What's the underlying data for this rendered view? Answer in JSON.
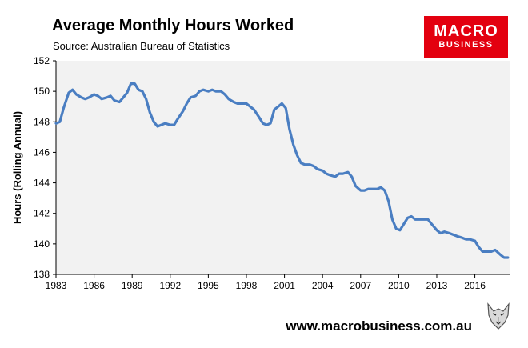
{
  "header": {
    "title": "Average Monthly Hours Worked",
    "subtitle": "Source: Australian Bureau of Statistics"
  },
  "logo": {
    "line1": "MACRO",
    "line2": "BUSINESS",
    "color": "#e3000f"
  },
  "footer": {
    "url": "www.macrobusiness.com.au",
    "mascot_icon": "wolf-icon"
  },
  "colors": {
    "line": "#4a7ec2",
    "plot_background": "#f2f2f2",
    "axis": "#000000"
  },
  "chart_data": {
    "type": "line",
    "title": "Average Monthly Hours Worked",
    "xlabel": "",
    "ylabel": "Hours (Rolling Annual)",
    "xlim": [
      1983.0,
      2018.8
    ],
    "ylim": [
      138,
      152
    ],
    "x_ticks": [
      "1983",
      "1986",
      "1989",
      "1992",
      "1995",
      "1998",
      "2001",
      "2004",
      "2007",
      "2010",
      "2013",
      "2016"
    ],
    "y_ticks": [
      "138",
      "140",
      "142",
      "144",
      "146",
      "148",
      "150",
      "152"
    ],
    "grid": false,
    "legend": "none",
    "series": [
      {
        "x": [
          1983.0,
          1983.3,
          1983.6,
          1984.0,
          1984.3,
          1984.6,
          1985.0,
          1985.3,
          1985.6,
          1986.0,
          1986.3,
          1986.6,
          1987.0,
          1987.3,
          1987.6,
          1988.0,
          1988.3,
          1988.6,
          1988.9,
          1989.2,
          1989.5,
          1989.8,
          1990.1,
          1990.4,
          1990.7,
          1991.0,
          1991.3,
          1991.6,
          1992.0,
          1992.3,
          1992.6,
          1993.0,
          1993.3,
          1993.6,
          1994.0,
          1994.3,
          1994.6,
          1995.0,
          1995.3,
          1995.6,
          1996.0,
          1996.3,
          1996.6,
          1997.0,
          1997.3,
          1997.6,
          1998.0,
          1998.3,
          1998.6,
          1999.0,
          1999.3,
          1999.6,
          1999.9,
          2000.2,
          2000.5,
          2000.8,
          2001.1,
          2001.4,
          2001.7,
          2002.0,
          2002.3,
          2002.6,
          2003.0,
          2003.3,
          2003.6,
          2004.0,
          2004.3,
          2004.6,
          2005.0,
          2005.3,
          2005.6,
          2006.0,
          2006.3,
          2006.6,
          2007.0,
          2007.3,
          2007.6,
          2008.0,
          2008.3,
          2008.6,
          2008.9,
          2009.2,
          2009.5,
          2009.8,
          2010.1,
          2010.4,
          2010.7,
          2011.0,
          2011.3,
          2011.6,
          2012.0,
          2012.3,
          2012.6,
          2013.0,
          2013.3,
          2013.6,
          2014.0,
          2014.3,
          2014.6,
          2015.0,
          2015.3,
          2015.6,
          2016.0,
          2016.3,
          2016.6,
          2017.0,
          2017.3,
          2017.6,
          2018.0,
          2018.3,
          2018.6
        ],
        "y": [
          147.9,
          148.0,
          148.9,
          149.9,
          150.1,
          149.8,
          149.6,
          149.5,
          149.6,
          149.8,
          149.7,
          149.5,
          149.6,
          149.7,
          149.4,
          149.3,
          149.6,
          149.9,
          150.5,
          150.5,
          150.1,
          150.0,
          149.5,
          148.6,
          148.0,
          147.7,
          147.8,
          147.9,
          147.8,
          147.8,
          148.2,
          148.7,
          149.2,
          149.6,
          149.7,
          150.0,
          150.1,
          150.0,
          150.1,
          150.0,
          150.0,
          149.8,
          149.5,
          149.3,
          149.2,
          149.2,
          149.2,
          149.0,
          148.8,
          148.3,
          147.9,
          147.8,
          147.9,
          148.8,
          149.0,
          149.2,
          148.9,
          147.5,
          146.5,
          145.8,
          145.3,
          145.2,
          145.2,
          145.1,
          144.9,
          144.8,
          144.6,
          144.5,
          144.4,
          144.6,
          144.6,
          144.7,
          144.4,
          143.8,
          143.5,
          143.5,
          143.6,
          143.6,
          143.6,
          143.7,
          143.5,
          142.8,
          141.6,
          141.0,
          140.9,
          141.3,
          141.7,
          141.8,
          141.6,
          141.6,
          141.6,
          141.6,
          141.3,
          140.9,
          140.7,
          140.8,
          140.7,
          140.6,
          140.5,
          140.4,
          140.3,
          140.3,
          140.2,
          139.8,
          139.5,
          139.5,
          139.5,
          139.6,
          139.3,
          139.1,
          139.1
        ]
      }
    ]
  }
}
